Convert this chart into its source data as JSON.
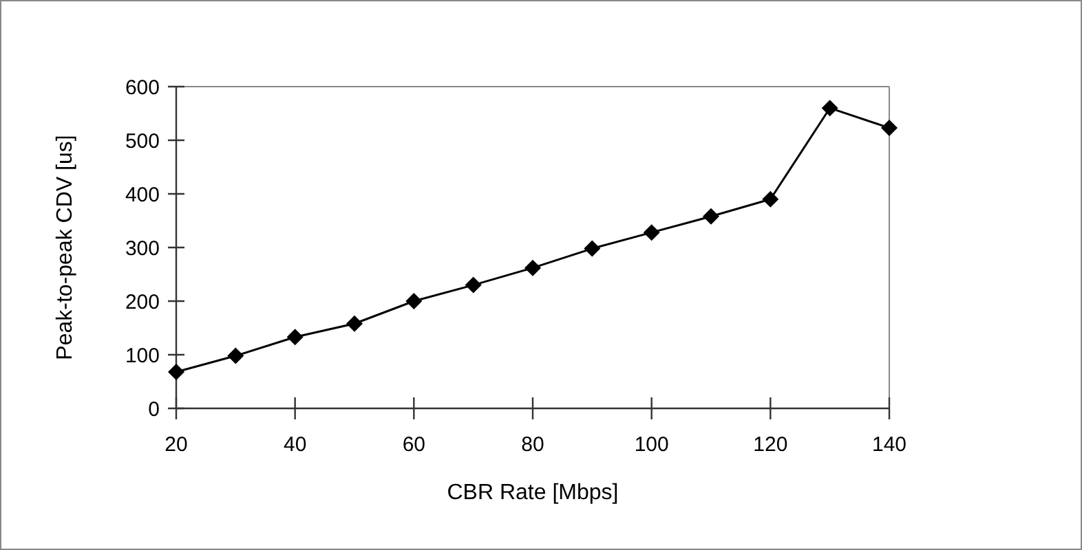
{
  "chart_data": {
    "type": "line",
    "xlabel": "CBR Rate [Mbps]",
    "ylabel": "Peak-to-peak CDV [us]",
    "x": [
      20,
      30,
      40,
      50,
      60,
      70,
      80,
      90,
      100,
      110,
      120,
      130,
      140
    ],
    "series": [
      {
        "color": "#000000",
        "values": [
          68,
          98,
          133,
          158,
          200,
          230,
          262,
          298,
          328,
          358,
          390,
          560,
          523
        ]
      }
    ],
    "xlim": [
      20,
      140
    ],
    "xticks": [
      20,
      40,
      60,
      80,
      100,
      120,
      140
    ],
    "ylim": [
      0,
      600
    ],
    "yticks": [
      0,
      100,
      200,
      300,
      400,
      500,
      600
    ],
    "marker": "diamond",
    "line_style": "solid",
    "grid": false
  }
}
